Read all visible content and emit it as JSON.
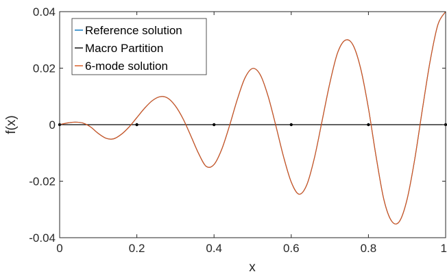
{
  "chart_data": {
    "type": "line",
    "xlabel": "x",
    "ylabel": "f(x)",
    "xlim": [
      0,
      1
    ],
    "ylim": [
      -0.04,
      0.04
    ],
    "xticks": [
      0,
      0.2,
      0.4,
      0.6,
      0.8,
      1
    ],
    "xtick_labels": [
      "0",
      "0.2",
      "0.4",
      "0.6",
      "0.8",
      "1"
    ],
    "yticks": [
      -0.04,
      -0.02,
      0,
      0.02,
      0.04
    ],
    "ytick_labels": [
      "-0.04",
      "-0.02",
      "0",
      "0.02",
      "0.04"
    ],
    "grid": false,
    "legend_position": "top-left",
    "series": [
      {
        "name": "Reference solution",
        "color": "#0072BD",
        "x": [
          0,
          0.02,
          0.04,
          0.06,
          0.08,
          0.1,
          0.12,
          0.14,
          0.16,
          0.18,
          0.2,
          0.22,
          0.24,
          0.26,
          0.28,
          0.3,
          0.32,
          0.34,
          0.36,
          0.38,
          0.4,
          0.42,
          0.44,
          0.46,
          0.48,
          0.5,
          0.52,
          0.54,
          0.56,
          0.58,
          0.6,
          0.62,
          0.64,
          0.66,
          0.68,
          0.7,
          0.72,
          0.74,
          0.76,
          0.78,
          0.8,
          0.82,
          0.84,
          0.86,
          0.88,
          0.9,
          0.92,
          0.94,
          0.96,
          0.98,
          1
        ],
        "y": [
          0,
          0.0006,
          0.0009,
          0.0006,
          -0.0008,
          -0.0031,
          -0.0048,
          -0.005,
          -0.0034,
          -0.0008,
          0.0025,
          0.0058,
          0.0085,
          0.0099,
          0.0094,
          0.0066,
          0.002,
          -0.004,
          -0.0102,
          -0.0148,
          -0.0141,
          -0.0087,
          -0.0004,
          0.0088,
          0.0165,
          0.0199,
          0.0176,
          0.0101,
          -0.0003,
          -0.0113,
          -0.0203,
          -0.0246,
          -0.0214,
          -0.0118,
          0.0014,
          0.0147,
          0.0254,
          0.0299,
          0.0282,
          0.0198,
          0.0058,
          -0.0114,
          -0.0265,
          -0.0341,
          -0.0343,
          -0.0265,
          -0.0122,
          0.0056,
          0.0226,
          0.0354,
          0.04
        ]
      },
      {
        "name": "Macro Partition",
        "color": "#000000",
        "x": [
          0,
          0.2,
          0.4,
          0.6,
          0.8,
          1
        ],
        "y": [
          0,
          0,
          0,
          0,
          0,
          0
        ]
      },
      {
        "name": "6-mode solution",
        "color": "#D95319",
        "x": [
          0,
          0.02,
          0.04,
          0.06,
          0.08,
          0.1,
          0.12,
          0.14,
          0.16,
          0.18,
          0.2,
          0.22,
          0.24,
          0.26,
          0.28,
          0.3,
          0.32,
          0.34,
          0.36,
          0.38,
          0.4,
          0.42,
          0.44,
          0.46,
          0.48,
          0.5,
          0.52,
          0.54,
          0.56,
          0.58,
          0.6,
          0.62,
          0.64,
          0.66,
          0.68,
          0.7,
          0.72,
          0.74,
          0.76,
          0.78,
          0.8,
          0.82,
          0.84,
          0.86,
          0.88,
          0.9,
          0.92,
          0.94,
          0.96,
          0.98,
          1
        ],
        "y": [
          0,
          0.0006,
          0.0009,
          0.0006,
          -0.0008,
          -0.0031,
          -0.0048,
          -0.005,
          -0.0034,
          -0.0008,
          0.0025,
          0.0058,
          0.0085,
          0.0099,
          0.0094,
          0.0066,
          0.002,
          -0.004,
          -0.0102,
          -0.0148,
          -0.0141,
          -0.0087,
          -0.0004,
          0.0088,
          0.0165,
          0.0199,
          0.0176,
          0.0101,
          -0.0003,
          -0.0113,
          -0.0203,
          -0.0246,
          -0.0214,
          -0.0118,
          0.0014,
          0.0147,
          0.0254,
          0.0299,
          0.0282,
          0.0198,
          0.0058,
          -0.0114,
          -0.0265,
          -0.0341,
          -0.0343,
          -0.0265,
          -0.0122,
          0.0056,
          0.0226,
          0.0354,
          0.04
        ]
      }
    ]
  }
}
